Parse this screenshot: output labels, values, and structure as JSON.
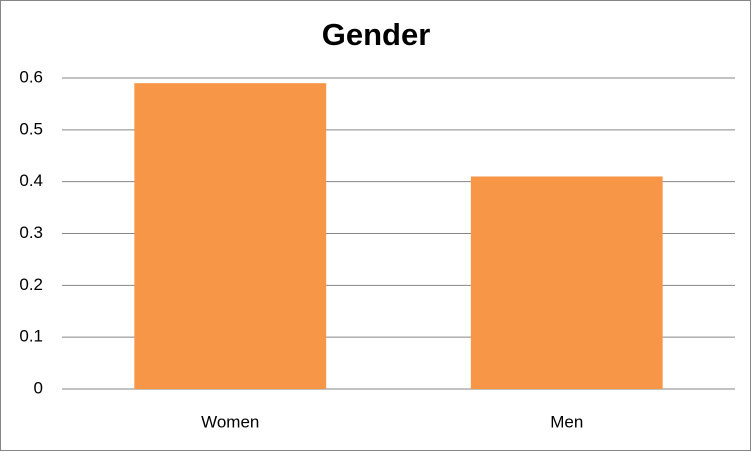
{
  "chart_data": {
    "type": "bar",
    "title": "Gender",
    "categories": [
      "Women",
      "Men"
    ],
    "values": [
      0.59,
      0.41
    ],
    "color": "#f79646",
    "ylim": [
      0,
      0.6
    ],
    "yticks": [
      0,
      0.1,
      0.2,
      0.3,
      0.4,
      0.5,
      0.6
    ],
    "grid": true
  }
}
